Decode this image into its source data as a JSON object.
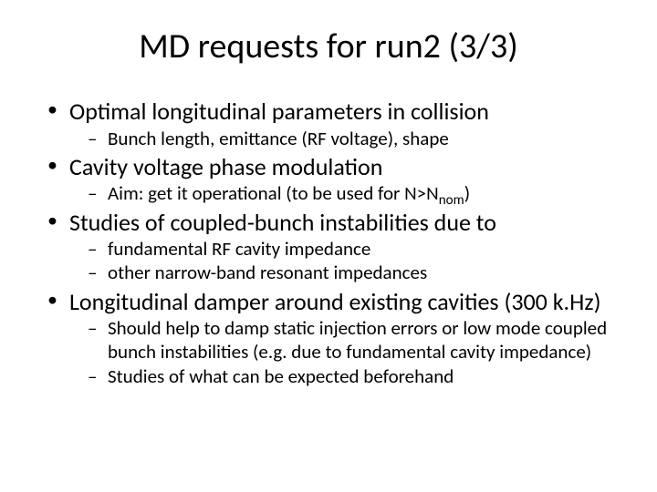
{
  "title": "MD requests for run2 (3/3)",
  "bullets": [
    {
      "text": "Optimal longitudinal parameters in collision",
      "subs": [
        "Bunch length, emittance (RF voltage), shape"
      ]
    },
    {
      "text": "Cavity voltage phase modulation",
      "subs_html": [
        "Aim: get it operational (to be used for N>N<span class=\"sub\">nom</span>)"
      ]
    },
    {
      "text": "Studies of coupled-bunch instabilities due to",
      "subs": [
        "fundamental RF cavity impedance",
        "other narrow-band resonant impedances"
      ]
    },
    {
      "text": "Longitudinal damper around existing cavities (300 k.Hz)",
      "subs": [
        "Should help to damp static injection errors or low mode coupled bunch instabilities (e.g. due to fundamental cavity impedance)",
        "Studies of what can be expected beforehand"
      ]
    }
  ],
  "colors": {
    "background": "#ffffff",
    "text": "#000000"
  },
  "typography": {
    "title_fontsize": 38,
    "lvl1_fontsize": 26,
    "lvl2_fontsize": 21,
    "font_family": "Calibri"
  }
}
